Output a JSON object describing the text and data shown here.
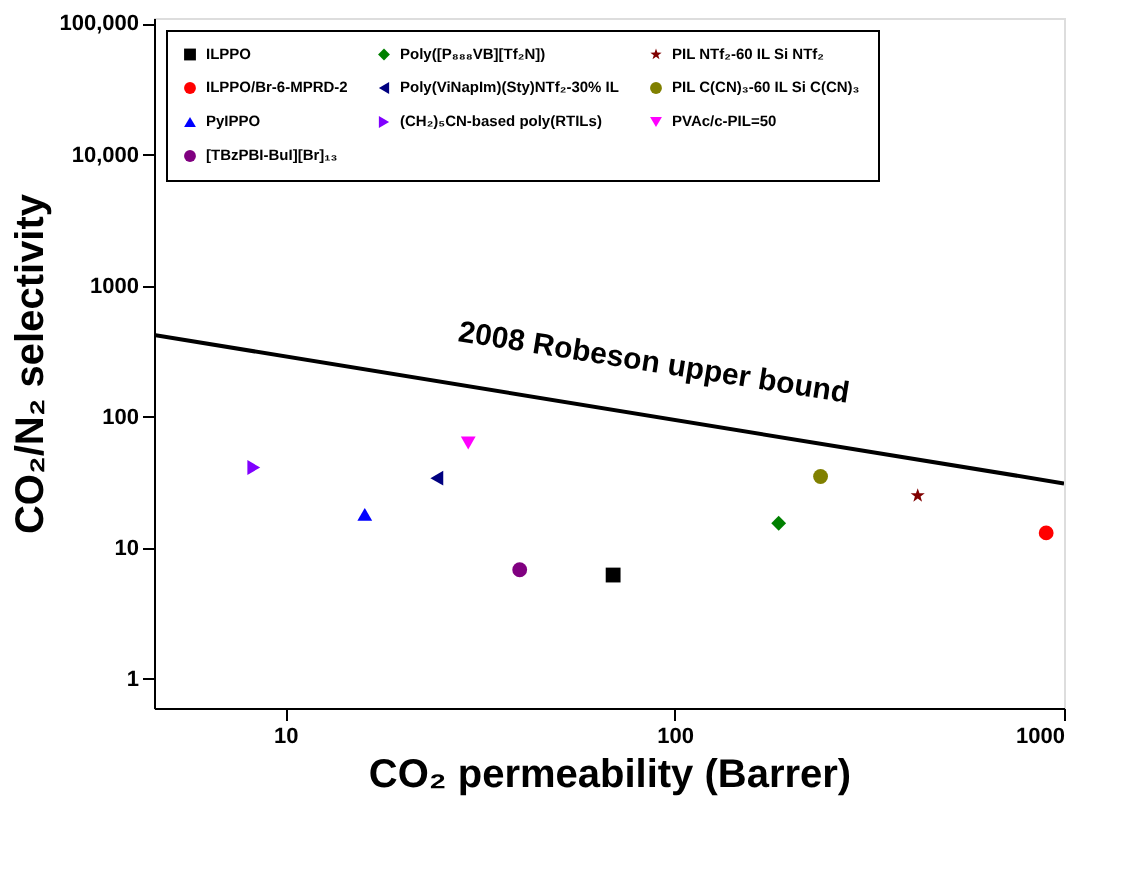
{
  "chart_data": {
    "type": "scatter",
    "xlabel": "CO₂ permeability (Barrer)",
    "ylabel": "CO₂/N₂ selectivity",
    "log": "xy",
    "xlim": [
      4.6,
      1000
    ],
    "ylim": [
      0.6,
      110000
    ],
    "xticks": [
      10,
      100,
      1000
    ],
    "yticks": [
      1,
      10,
      100,
      1000,
      {
        "value": 10000,
        "label": "10,000"
      },
      {
        "value": 100000,
        "label": "100,000"
      }
    ],
    "grid": false,
    "legend": "top",
    "series": [
      {
        "name": "ILPPO",
        "color": "#000000",
        "marker": "square",
        "x": [
          69.5
        ],
        "values": [
          6.2
        ]
      },
      {
        "name": "ILPPO/Br-6-MPRD-2",
        "color": "#ff0000",
        "marker": "circle",
        "x": [
          900
        ],
        "values": [
          13
        ]
      },
      {
        "name": "PyIPPO",
        "color": "#0000ff",
        "marker": "triangle",
        "x": [
          16
        ],
        "values": [
          18
        ]
      },
      {
        "name": "PVAc/c-PIL=50",
        "color": "#ff00ff",
        "marker": "triangle-down",
        "x": [
          29.5
        ],
        "values": [
          63
        ]
      },
      {
        "name": "Poly([P₈₈₈VB][Tf₂N])",
        "color": "#008000",
        "marker": "diamond",
        "x": [
          185
        ],
        "values": [
          15.4
        ]
      },
      {
        "name": "Poly(ViNapIm)(Sty)NTf₂-30% IL",
        "color": "#000080",
        "marker": "triangle-left",
        "x": [
          24.5
        ],
        "values": [
          34
        ]
      },
      {
        "name": "(CH₂)₅CN-based poly(RTILs)",
        "color": "#8000ff",
        "marker": "triangle-right",
        "x": [
          8.3
        ],
        "values": [
          41
        ]
      },
      {
        "name": "[TBzPBI-BuI][Br]₁₃",
        "color": "#800080",
        "marker": "circle",
        "x": [
          40
        ],
        "values": [
          6.8
        ]
      },
      {
        "name": "PIL NTf₂-60 IL Si NTf₂",
        "color": "#800000",
        "marker": "star",
        "x": [
          421
        ],
        "values": [
          25
        ]
      },
      {
        "name": "PIL C(CN)₃-60 IL Si C(CN)₃",
        "color": "#808000",
        "marker": "circle",
        "x": [
          237
        ],
        "values": [
          35
        ]
      },
      {
        "type": "line",
        "color": "#000000",
        "line_style": "solid",
        "x": [
          4.6,
          1000
        ],
        "values": [
          420,
          31
        ]
      }
    ],
    "annotations": [
      "2008 Robeson upper bound"
    ]
  }
}
